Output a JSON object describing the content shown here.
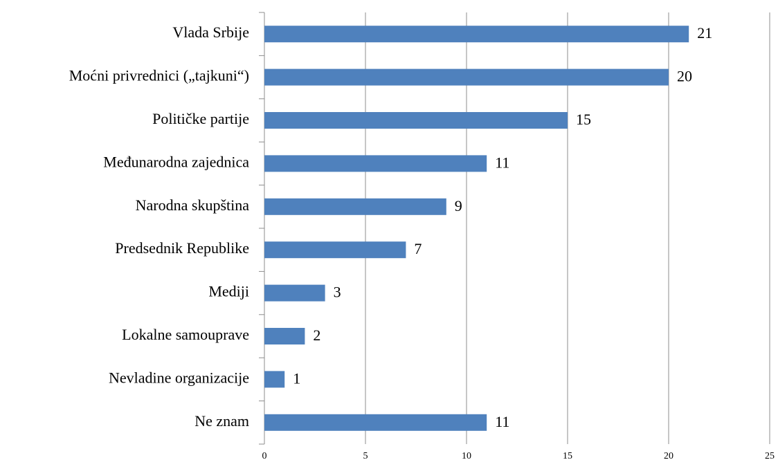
{
  "chart_data": {
    "type": "bar",
    "orientation": "horizontal",
    "categories": [
      "Vlada Srbije",
      "Moćni privrednici („tajkuni“)",
      "Političke partije",
      "Međunarodna zajednica",
      "Narodna skupština",
      "Predsednik Republike",
      "Mediji",
      "Lokalne samouprave",
      "Nevladine organizacije",
      "Ne znam"
    ],
    "values": [
      21,
      20,
      15,
      11,
      9,
      7,
      3,
      2,
      1,
      11
    ],
    "color": "#4f81bd",
    "xlim": [
      0,
      25
    ],
    "xticks": [
      0,
      5,
      10,
      15,
      20,
      25
    ],
    "grid": true
  }
}
